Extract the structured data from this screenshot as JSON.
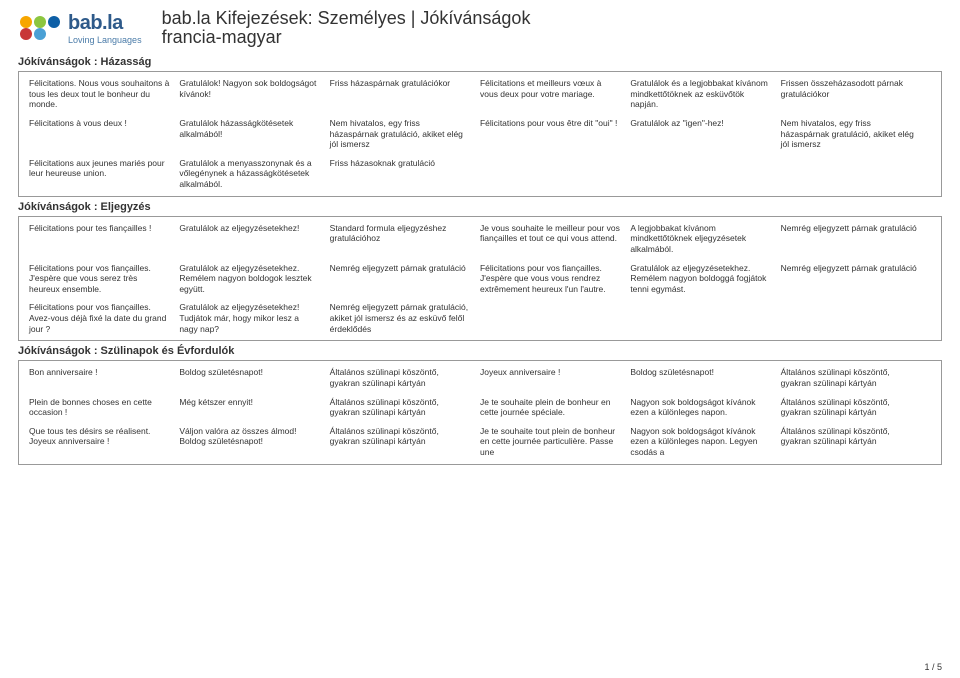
{
  "logo": {
    "brand": "bab.la",
    "tagline": "Loving Languages"
  },
  "title": "bab.la Kifejezések: Személyes | Jókívánságok",
  "subtitle": "francia-magyar",
  "footer": "1 / 5",
  "sections": [
    {
      "title": "Jókívánságok : Házasság",
      "rows": [
        [
          "Félicitations. Nous vous souhaitons à tous les deux tout le bonheur du monde.",
          "Gratulálok! Nagyon sok boldogságot kívánok!",
          "Friss házaspárnak gratulációkor",
          "Félicitations et meilleurs vœux à vous deux pour votre mariage.",
          "Gratulálok és a legjobbakat kívánom mindkettőtöknek az esküvőtök napján.",
          "Frissen összeházasodott párnak gratulációkor"
        ],
        [
          "Félicitations à vous deux !",
          "Gratulálok házasságkötésetek alkalmából!",
          "Nem hivatalos, egy friss házaspárnak gratuláció, akiket elég jól ismersz",
          "Félicitations pour vous être dit \"oui\" !",
          "Gratulálok az \"igen\"-hez!",
          "Nem hivatalos, egy friss házaspárnak gratuláció, akiket elég jól ismersz"
        ],
        [
          "Félicitations aux jeunes mariés pour leur heureuse union.",
          "Gratulálok a menyasszonynak és a vőlegénynek a házasságkötésetek alkalmából.",
          "Friss házasoknak gratuláció",
          "",
          "",
          ""
        ]
      ]
    },
    {
      "title": "Jókívánságok : Eljegyzés",
      "rows": [
        [
          "Félicitations pour tes fiançailles !",
          "Gratulálok az eljegyzésetekhez!",
          "Standard formula eljegyzéshez gratulációhoz",
          "Je vous souhaite le meilleur pour vos fiançailles et tout ce qui vous attend.",
          "A legjobbakat kívánom mindkettőtöknek eljegyzésetek alkalmából.",
          "Nemrég eljegyzett párnak gratuláció"
        ],
        [
          "Félicitations pour vos fiançailles. J'espère que vous serez très heureux ensemble.",
          "Gratulálok az eljegyzésetekhez. Remélem nagyon boldogok lesztek együtt.",
          "Nemrég eljegyzett párnak gratuláció",
          "Félicitations pour vos fiançailles. J'espère que vous vous rendrez extrêmement heureux l'un l'autre.",
          "Gratulálok az eljegyzésetekhez. Remélem nagyon boldoggá fogjátok tenni egymást.",
          "Nemrég eljegyzett párnak gratuláció"
        ],
        [
          "Félicitations pour vos fiançailles. Avez-vous déjà fixé la date du grand jour ?",
          "Gratulálok az eljegyzésetekhez! Tudjátok már, hogy mikor lesz a nagy nap?",
          "Nemrég eljegyzett párnak gratuláció, akiket jól ismersz és az esküvő felől érdeklődés",
          "",
          "",
          ""
        ]
      ]
    },
    {
      "title": "Jókívánságok : Szülinapok és Évfordulók",
      "rows": [
        [
          "Bon anniversaire !",
          "Boldog születésnapot!",
          "Általános szülinapi köszöntő, gyakran szülinapi kártyán",
          "Joyeux anniversaire !",
          "Boldog születésnapot!",
          "Általános szülinapi köszöntő, gyakran szülinapi kártyán"
        ],
        [
          "Plein de bonnes choses en cette occasion !",
          "Még kétszer ennyit!",
          "Általános szülinapi köszöntő, gyakran szülinapi kártyán",
          "Je te souhaite plein de bonheur en cette journée spéciale.",
          "Nagyon sok boldogságot kívánok ezen a különleges napon.",
          "Általános szülinapi köszöntő, gyakran szülinapi kártyán"
        ],
        [
          "Que tous tes désirs se réalisent. Joyeux anniversaire !",
          "Váljon valóra az összes álmod! Boldog születésnapot!",
          "Általános szülinapi köszöntő, gyakran szülinapi kártyán",
          "Je te souhaite tout plein de bonheur en cette journée particulière. Passe une",
          "Nagyon sok boldogságot kívánok ezen a különleges napon. Legyen csodás a",
          "Általános szülinapi köszöntő, gyakran szülinapi kártyán"
        ]
      ]
    }
  ]
}
